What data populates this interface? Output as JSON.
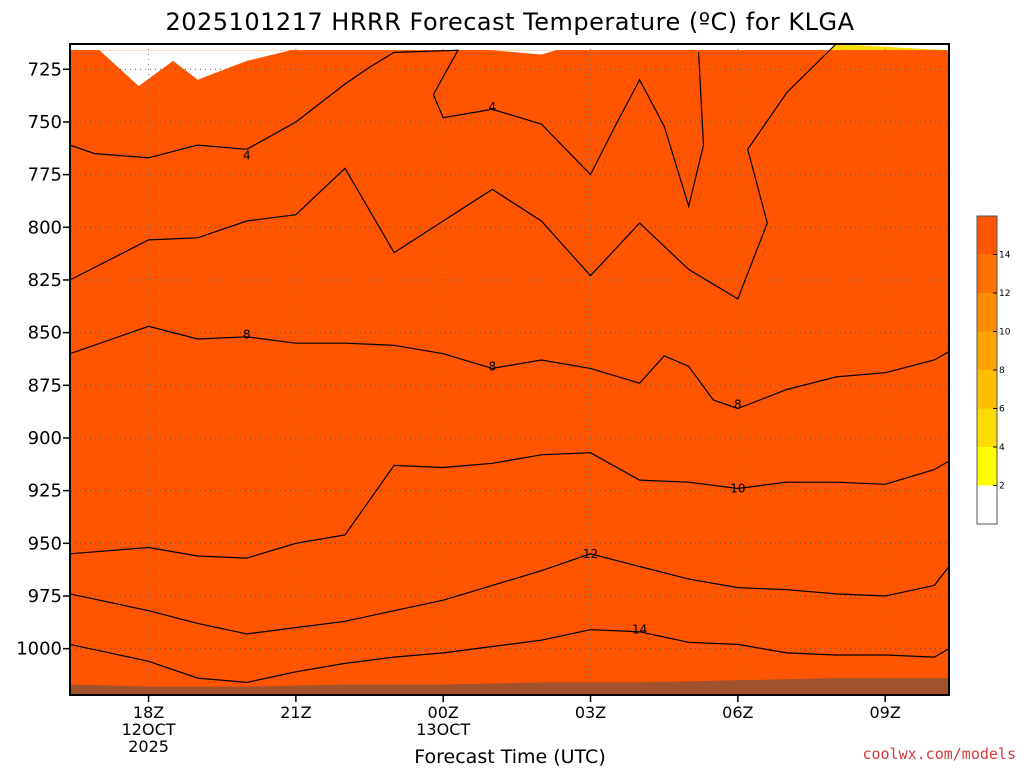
{
  "chart_data": {
    "type": "heatmap",
    "title": "2025101217 HRRR Forecast Temperature (ºC) for KLGA",
    "xlabel": "Forecast Time (UTC)",
    "ylabel": "",
    "credit": "coolwx.com/models",
    "y_axis": {
      "quantity": "pressure_hPa",
      "inverted": true,
      "range": [
        1022,
        713
      ],
      "ticks": [
        725,
        750,
        775,
        800,
        825,
        850,
        875,
        900,
        925,
        950,
        975,
        1000
      ]
    },
    "x_axis": {
      "range_hours": [
        -1.6,
        16.3
      ],
      "ticks": [
        {
          "hour": 0,
          "lines": [
            "18Z",
            "12OCT",
            "2025"
          ]
        },
        {
          "hour": 3,
          "lines": [
            "21Z"
          ]
        },
        {
          "hour": 6,
          "lines": [
            "00Z",
            "13OCT"
          ]
        },
        {
          "hour": 9,
          "lines": [
            "03Z"
          ]
        },
        {
          "hour": 12,
          "lines": [
            "06Z"
          ]
        },
        {
          "hour": 15,
          "lines": [
            "09Z"
          ]
        }
      ]
    },
    "grid": true,
    "colorbar": {
      "placement": "right",
      "ticks": [
        2,
        4,
        6,
        8,
        10,
        12,
        14
      ],
      "levels": [
        {
          "min": null,
          "max": 2,
          "color": "#ffffff"
        },
        {
          "min": 2,
          "max": 4,
          "color": "#ffff00"
        },
        {
          "min": 4,
          "max": 6,
          "color": "#ffdd00"
        },
        {
          "min": 6,
          "max": 8,
          "color": "#ffbf00"
        },
        {
          "min": 8,
          "max": 10,
          "color": "#ffa300"
        },
        {
          "min": 10,
          "max": 12,
          "color": "#ff8c00"
        },
        {
          "min": 12,
          "max": 14,
          "color": "#ff7200"
        },
        {
          "min": 14,
          "max": null,
          "color": "#ff5500"
        }
      ]
    },
    "surface_color": "#a0522d",
    "bands": [
      {
        "min": 2,
        "max": 4,
        "color": "#ffff00",
        "lower": [
          [
            -1.6,
            761
          ],
          [
            -1.1,
            765
          ],
          [
            0,
            767
          ],
          [
            1,
            761
          ],
          [
            1.0,
            759
          ],
          [
            2,
            763
          ],
          [
            3,
            750
          ],
          [
            4,
            732
          ],
          [
            4.5,
            724
          ],
          [
            5,
            717
          ]
        ],
        "upper": [
          [
            -1.6,
            716
          ],
          [
            16.3,
            716
          ]
        ]
      },
      {
        "min": 4,
        "max": 6,
        "color": "#ffdd00",
        "lower": [
          [
            -1.6,
            825
          ],
          [
            0,
            806
          ],
          [
            1,
            805
          ],
          [
            2,
            797
          ],
          [
            3,
            794
          ],
          [
            4,
            772
          ],
          [
            5,
            812
          ],
          [
            6,
            797
          ],
          [
            7,
            782
          ],
          [
            8,
            797
          ],
          [
            9,
            823
          ],
          [
            10,
            798
          ],
          [
            11,
            820
          ],
          [
            12,
            834
          ],
          [
            12.6,
            798
          ],
          [
            12.2,
            763
          ],
          [
            13,
            736
          ],
          [
            14,
            713
          ]
        ],
        "upper": [
          [
            -1.6,
            716
          ],
          [
            16.3,
            716
          ]
        ]
      },
      {
        "min": 6,
        "max": 8,
        "color": "#ffbf00",
        "lower": [
          [
            -1.6,
            860
          ],
          [
            0,
            847
          ],
          [
            1,
            853
          ],
          [
            2,
            852
          ],
          [
            3,
            855
          ],
          [
            4,
            855
          ],
          [
            5,
            856
          ],
          [
            6,
            860
          ],
          [
            7,
            867
          ],
          [
            8,
            863
          ],
          [
            9,
            867
          ],
          [
            10,
            874
          ],
          [
            10.5,
            861
          ],
          [
            11,
            866
          ],
          [
            11.5,
            882
          ],
          [
            12,
            886
          ],
          [
            13,
            877
          ],
          [
            14,
            871
          ],
          [
            15,
            869
          ],
          [
            16,
            863
          ],
          [
            16.3,
            859
          ]
        ],
        "upper": [
          [
            -1.6,
            716
          ],
          [
            16.3,
            716
          ]
        ]
      },
      {
        "min": 8,
        "max": 10,
        "color": "#ffa300",
        "lower": [
          [
            -1.6,
            955
          ],
          [
            0,
            952
          ],
          [
            1,
            956
          ],
          [
            2,
            957
          ],
          [
            3,
            950
          ],
          [
            4,
            946
          ],
          [
            5,
            913
          ],
          [
            6,
            914
          ],
          [
            7,
            912
          ],
          [
            8,
            908
          ],
          [
            9,
            907
          ],
          [
            10,
            920
          ],
          [
            11,
            921
          ],
          [
            12,
            924
          ],
          [
            13,
            921
          ],
          [
            14,
            921
          ],
          [
            15,
            922
          ],
          [
            16,
            915
          ],
          [
            16.3,
            911
          ]
        ],
        "upper": [
          [
            -1.6,
            716
          ],
          [
            16.3,
            716
          ]
        ]
      },
      {
        "min": 10,
        "max": 12,
        "color": "#ff8c00",
        "lower": [
          [
            -1.6,
            974
          ],
          [
            0,
            982
          ],
          [
            1,
            988
          ],
          [
            2,
            993
          ],
          [
            3,
            990
          ],
          [
            4,
            987
          ],
          [
            5,
            982
          ],
          [
            6,
            977
          ],
          [
            7,
            970
          ],
          [
            8,
            963
          ],
          [
            9,
            955
          ],
          [
            10,
            961
          ],
          [
            11,
            967
          ],
          [
            12,
            971
          ],
          [
            13,
            972
          ],
          [
            14,
            974
          ],
          [
            15,
            975
          ],
          [
            16,
            970
          ],
          [
            16.3,
            961
          ]
        ],
        "upper": [
          [
            -1.6,
            716
          ],
          [
            16.3,
            716
          ]
        ]
      },
      {
        "min": 12,
        "max": 14,
        "color": "#ff7200",
        "lower": [
          [
            -1.6,
            998
          ],
          [
            0,
            1006
          ],
          [
            1,
            1014
          ],
          [
            2,
            1016
          ],
          [
            3,
            1011
          ],
          [
            4,
            1007
          ],
          [
            5,
            1004
          ],
          [
            6,
            1002
          ],
          [
            7,
            999
          ],
          [
            8,
            996
          ],
          [
            9,
            991
          ],
          [
            10,
            992
          ],
          [
            11,
            997
          ],
          [
            12,
            998
          ],
          [
            13,
            1002
          ],
          [
            14,
            1003
          ],
          [
            15,
            1003
          ],
          [
            16,
            1004
          ],
          [
            16.3,
            1000
          ]
        ],
        "upper": [
          [
            -1.6,
            716
          ],
          [
            16.3,
            716
          ]
        ]
      },
      {
        "min": 14,
        "max": null,
        "color": "#ff5500",
        "lower": [
          [
            -1.6,
            1022
          ],
          [
            16.3,
            1022
          ]
        ],
        "upper": [
          [
            -1.6,
            716
          ],
          [
            16.3,
            716
          ]
        ]
      }
    ],
    "lens": [
      {
        "color": "#ffffff",
        "points": [
          [
            -1.0,
            716
          ],
          [
            -0.2,
            733
          ],
          [
            0.5,
            721
          ],
          [
            1,
            730
          ],
          [
            2,
            721
          ],
          [
            2.9,
            716
          ]
        ]
      },
      {
        "color": "#ffffff",
        "points": [
          [
            7.0,
            716
          ],
          [
            7.5,
            717
          ],
          [
            8,
            718
          ],
          [
            8.3,
            716
          ]
        ]
      }
    ],
    "contours": [
      {
        "value": 4,
        "points": [
          [
            -1.6,
            761
          ],
          [
            -1.1,
            765
          ],
          [
            0,
            767
          ],
          [
            1,
            761
          ],
          [
            2,
            763
          ],
          [
            3,
            750
          ],
          [
            4,
            732
          ],
          [
            4.5,
            724
          ],
          [
            5,
            717
          ],
          [
            6.3,
            716
          ],
          [
            5.8,
            737
          ],
          [
            6,
            748
          ],
          [
            6.5,
            746
          ],
          [
            7,
            744
          ],
          [
            8,
            751
          ],
          [
            9,
            775
          ],
          [
            9.5,
            752
          ],
          [
            10,
            730
          ],
          [
            10.5,
            752
          ],
          [
            11,
            790
          ],
          [
            11.3,
            761
          ],
          [
            11.2,
            717
          ]
        ]
      },
      {
        "value": 6,
        "points": [
          [
            -1.6,
            825
          ],
          [
            0,
            806
          ],
          [
            1,
            805
          ],
          [
            2,
            797
          ],
          [
            3,
            794
          ],
          [
            4,
            772
          ],
          [
            5,
            812
          ],
          [
            6,
            797
          ],
          [
            7,
            782
          ],
          [
            8,
            797
          ],
          [
            9,
            823
          ],
          [
            10,
            798
          ],
          [
            11,
            820
          ],
          [
            12,
            834
          ],
          [
            12.6,
            798
          ],
          [
            12.2,
            763
          ],
          [
            13,
            736
          ],
          [
            14,
            713
          ]
        ]
      },
      {
        "value": 8,
        "points": [
          [
            -1.6,
            860
          ],
          [
            0,
            847
          ],
          [
            1,
            853
          ],
          [
            2,
            852
          ],
          [
            3,
            855
          ],
          [
            4,
            855
          ],
          [
            5,
            856
          ],
          [
            6,
            860
          ],
          [
            7,
            867
          ],
          [
            8,
            863
          ],
          [
            9,
            867
          ],
          [
            10,
            874
          ],
          [
            10.5,
            861
          ],
          [
            11,
            866
          ],
          [
            11.5,
            882
          ],
          [
            12,
            886
          ],
          [
            13,
            877
          ],
          [
            14,
            871
          ],
          [
            15,
            869
          ],
          [
            16,
            863
          ],
          [
            16.3,
            859
          ]
        ]
      },
      {
        "value": 10,
        "points": [
          [
            -1.6,
            955
          ],
          [
            0,
            952
          ],
          [
            1,
            956
          ],
          [
            2,
            957
          ],
          [
            3,
            950
          ],
          [
            4,
            946
          ],
          [
            5,
            913
          ],
          [
            6,
            914
          ],
          [
            7,
            912
          ],
          [
            8,
            908
          ],
          [
            9,
            907
          ],
          [
            10,
            920
          ],
          [
            11,
            921
          ],
          [
            12,
            924
          ],
          [
            13,
            921
          ],
          [
            14,
            921
          ],
          [
            15,
            922
          ],
          [
            16,
            915
          ],
          [
            16.3,
            911
          ]
        ]
      },
      {
        "value": 12,
        "points": [
          [
            -1.6,
            974
          ],
          [
            0,
            982
          ],
          [
            1,
            988
          ],
          [
            2,
            993
          ],
          [
            3,
            990
          ],
          [
            4,
            987
          ],
          [
            5,
            982
          ],
          [
            6,
            977
          ],
          [
            7,
            970
          ],
          [
            8,
            963
          ],
          [
            9,
            955
          ],
          [
            10,
            961
          ],
          [
            11,
            967
          ],
          [
            12,
            971
          ],
          [
            13,
            972
          ],
          [
            14,
            974
          ],
          [
            15,
            975
          ],
          [
            16,
            970
          ],
          [
            16.3,
            961
          ]
        ]
      },
      {
        "value": 14,
        "points": [
          [
            -1.6,
            998
          ],
          [
            0,
            1006
          ],
          [
            1,
            1014
          ],
          [
            2,
            1016
          ],
          [
            3,
            1011
          ],
          [
            4,
            1007
          ],
          [
            5,
            1004
          ],
          [
            6,
            1002
          ],
          [
            7,
            999
          ],
          [
            8,
            996
          ],
          [
            9,
            991
          ],
          [
            10,
            992
          ],
          [
            11,
            997
          ],
          [
            12,
            998
          ],
          [
            13,
            1002
          ],
          [
            14,
            1003
          ],
          [
            15,
            1003
          ],
          [
            16,
            1004
          ],
          [
            16.3,
            1000
          ]
        ]
      }
    ],
    "contour_labels": [
      {
        "text": "4",
        "hour": 2,
        "p": 766
      },
      {
        "text": "4",
        "hour": 7,
        "p": 743
      },
      {
        "text": "8",
        "hour": 2,
        "p": 851
      },
      {
        "text": "8",
        "hour": 7,
        "p": 866
      },
      {
        "text": "8",
        "hour": 12,
        "p": 884
      },
      {
        "text": "10",
        "hour": 12,
        "p": 924
      },
      {
        "text": "12",
        "hour": 9,
        "p": 955
      },
      {
        "text": "14",
        "hour": 10,
        "p": 991
      }
    ],
    "surface_pressure": [
      [
        -1.6,
        1017
      ],
      [
        0,
        1018
      ],
      [
        2,
        1018
      ],
      [
        4,
        1017
      ],
      [
        6,
        1017
      ],
      [
        8,
        1016
      ],
      [
        10,
        1016
      ],
      [
        12,
        1015
      ],
      [
        14,
        1014
      ],
      [
        16.3,
        1014
      ]
    ]
  }
}
